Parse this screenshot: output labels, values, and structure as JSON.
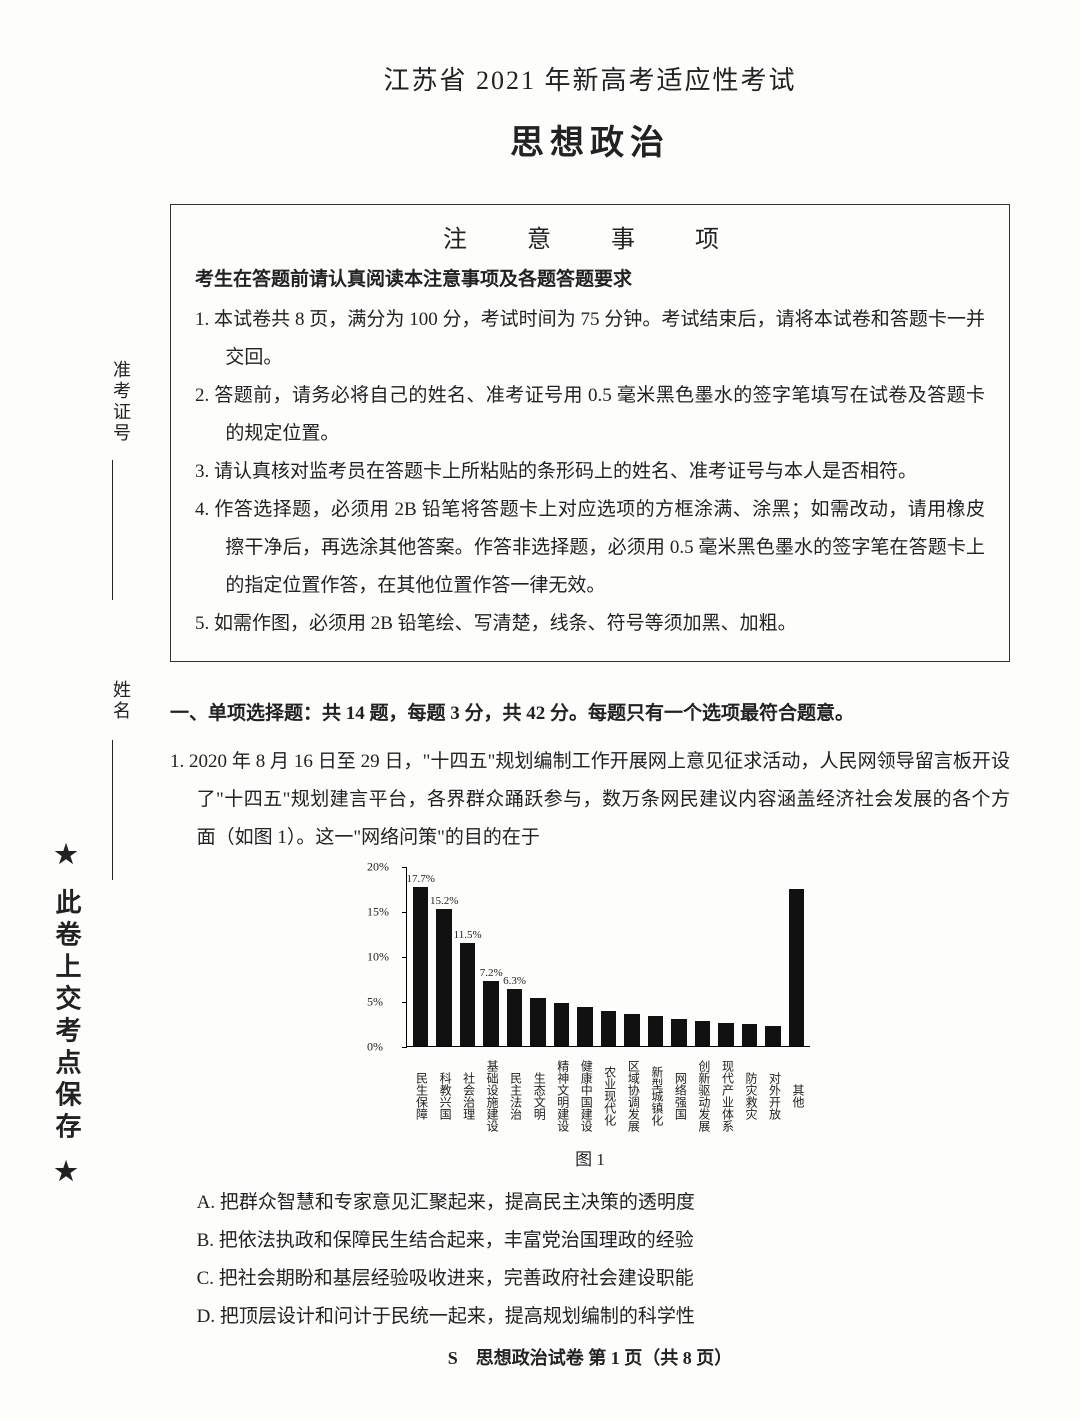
{
  "title_main": "江苏省 2021 年新高考适应性考试",
  "title_sub": "思想政治",
  "notice": {
    "heading": "注　意　事　项",
    "sub": "考生在答题前请认真阅读本注意事项及各题答题要求",
    "items": [
      "1. 本试卷共 8 页，满分为 100 分，考试时间为 75 分钟。考试结束后，请将本试卷和答题卡一并交回。",
      "2. 答题前，请务必将自己的姓名、准考证号用 0.5 毫米黑色墨水的签字笔填写在试卷及答题卡的规定位置。",
      "3. 请认真核对监考员在答题卡上所粘贴的条形码上的姓名、准考证号与本人是否相符。",
      "4. 作答选择题，必须用 2B 铅笔将答题卡上对应选项的方框涂满、涂黑；如需改动，请用橡皮擦干净后，再选涂其他答案。作答非选择题，必须用 0.5 毫米黑色墨水的签字笔在答题卡上的指定位置作答，在其他位置作答一律无效。",
      "5. 如需作图，必须用 2B 铅笔绘、写清楚，线条、符号等须加黑、加粗。"
    ]
  },
  "section_header": "一、单项选择题：共 14 题，每题 3 分，共 42 分。每题只有一个选项最符合题意。",
  "q1": {
    "text": "1. 2020 年 8 月 16 日至 29 日，\"十四五\"规划编制工作开展网上意见征求活动，人民网领导留言板开设了\"十四五\"规划建言平台，各界群众踊跃参与，数万条网民建议内容涵盖经济社会发展的各个方面（如图 1）。这一\"网络问策\"的目的在于",
    "options": {
      "A": "A. 把群众智慧和专家意见汇聚起来，提高民主决策的透明度",
      "B": "B. 把依法执政和保障民生结合起来，丰富党治国理政的经验",
      "C": "C. 把社会期盼和基层经验吸收进来，完善政府社会建设职能",
      "D": "D. 把顶层设计和问计于民统一起来，提高规划编制的科学性"
    }
  },
  "chart": {
    "type": "bar",
    "ylim": [
      0,
      20
    ],
    "ytick_step": 5,
    "ytick_labels": [
      "0%",
      "5%",
      "10%",
      "15%",
      "20%"
    ],
    "bar_color": "#111111",
    "categories": [
      "民生保障",
      "科教兴国",
      "社会治理",
      "基础设施建设",
      "民主法治",
      "生态文明",
      "精神文明建设",
      "健康中国建设",
      "农业现代化",
      "区域协调发展",
      "新型城镇化",
      "网络强国",
      "创新驱动发展",
      "现代产业体系",
      "防灾救灾",
      "对外开放",
      "其他"
    ],
    "values": [
      17.7,
      15.2,
      11.5,
      7.2,
      6.3,
      5.3,
      4.8,
      4.3,
      3.9,
      3.6,
      3.3,
      3.0,
      2.8,
      2.6,
      2.4,
      2.2,
      17.5
    ],
    "value_labels": [
      "17.7%",
      "15.2%",
      "11.5%",
      "7.2%",
      "6.3%",
      "",
      "",
      "",
      "",
      "",
      "",
      "",
      "",
      "",
      "",
      "",
      ""
    ],
    "caption": "图 1"
  },
  "footer": "S　思想政治试卷 第 1 页（共 8 页）",
  "sidebar": {
    "id_label": "准考证号",
    "name_label": "姓名",
    "keep_text": "★ 此卷上交考点保存 ★"
  }
}
